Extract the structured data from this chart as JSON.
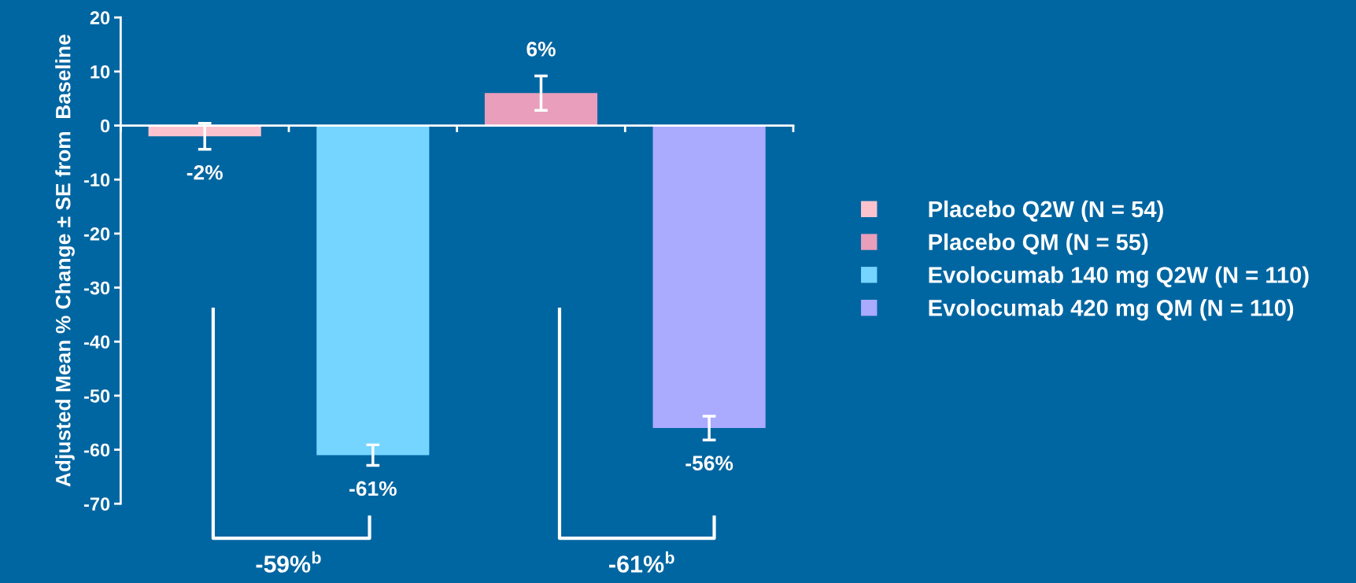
{
  "chart_data": {
    "type": "bar",
    "ylabel": "Adjusted Mean % Change ± SE from  Baseline",
    "categories": [
      null,
      null,
      null,
      null
    ],
    "series": [
      {
        "name": "Placebo Q2W (N = 54)",
        "color": "#fcc3cf",
        "values": [
          -2,
          null,
          null,
          null
        ],
        "errors": [
          2.4,
          null,
          null,
          null
        ],
        "value_labels": [
          "-2%",
          null,
          null,
          null
        ]
      },
      {
        "name": "Placebo QM (N = 55)",
        "color": "#e99ebb",
        "values": [
          null,
          null,
          6,
          null
        ],
        "errors": [
          null,
          null,
          3.2,
          null
        ],
        "value_labels": [
          null,
          null,
          "6%",
          null
        ]
      },
      {
        "name": "Evolocumab 140 mg Q2W (N = 110)",
        "color": "#75d5ff",
        "values": [
          null,
          -61,
          null,
          null
        ],
        "errors": [
          null,
          1.9,
          null,
          null
        ],
        "value_labels": [
          null,
          "-61%",
          null,
          null
        ]
      },
      {
        "name": "Evolocumab 420 mg QM (N = 110)",
        "color": "#aaaaff",
        "values": [
          null,
          null,
          null,
          -56
        ],
        "errors": [
          null,
          null,
          null,
          2.2
        ],
        "value_labels": [
          null,
          null,
          null,
          "-56%"
        ]
      }
    ],
    "ylim": [
      -70,
      20
    ],
    "yticks": [
      20,
      10,
      0,
      -10,
      -20,
      -30,
      -40,
      -50,
      -60,
      -70
    ],
    "annotations": [
      "-59%$^{b}$",
      "-61%$^{b}$"
    ],
    "tick_labels": "y",
    "legend": "right"
  }
}
